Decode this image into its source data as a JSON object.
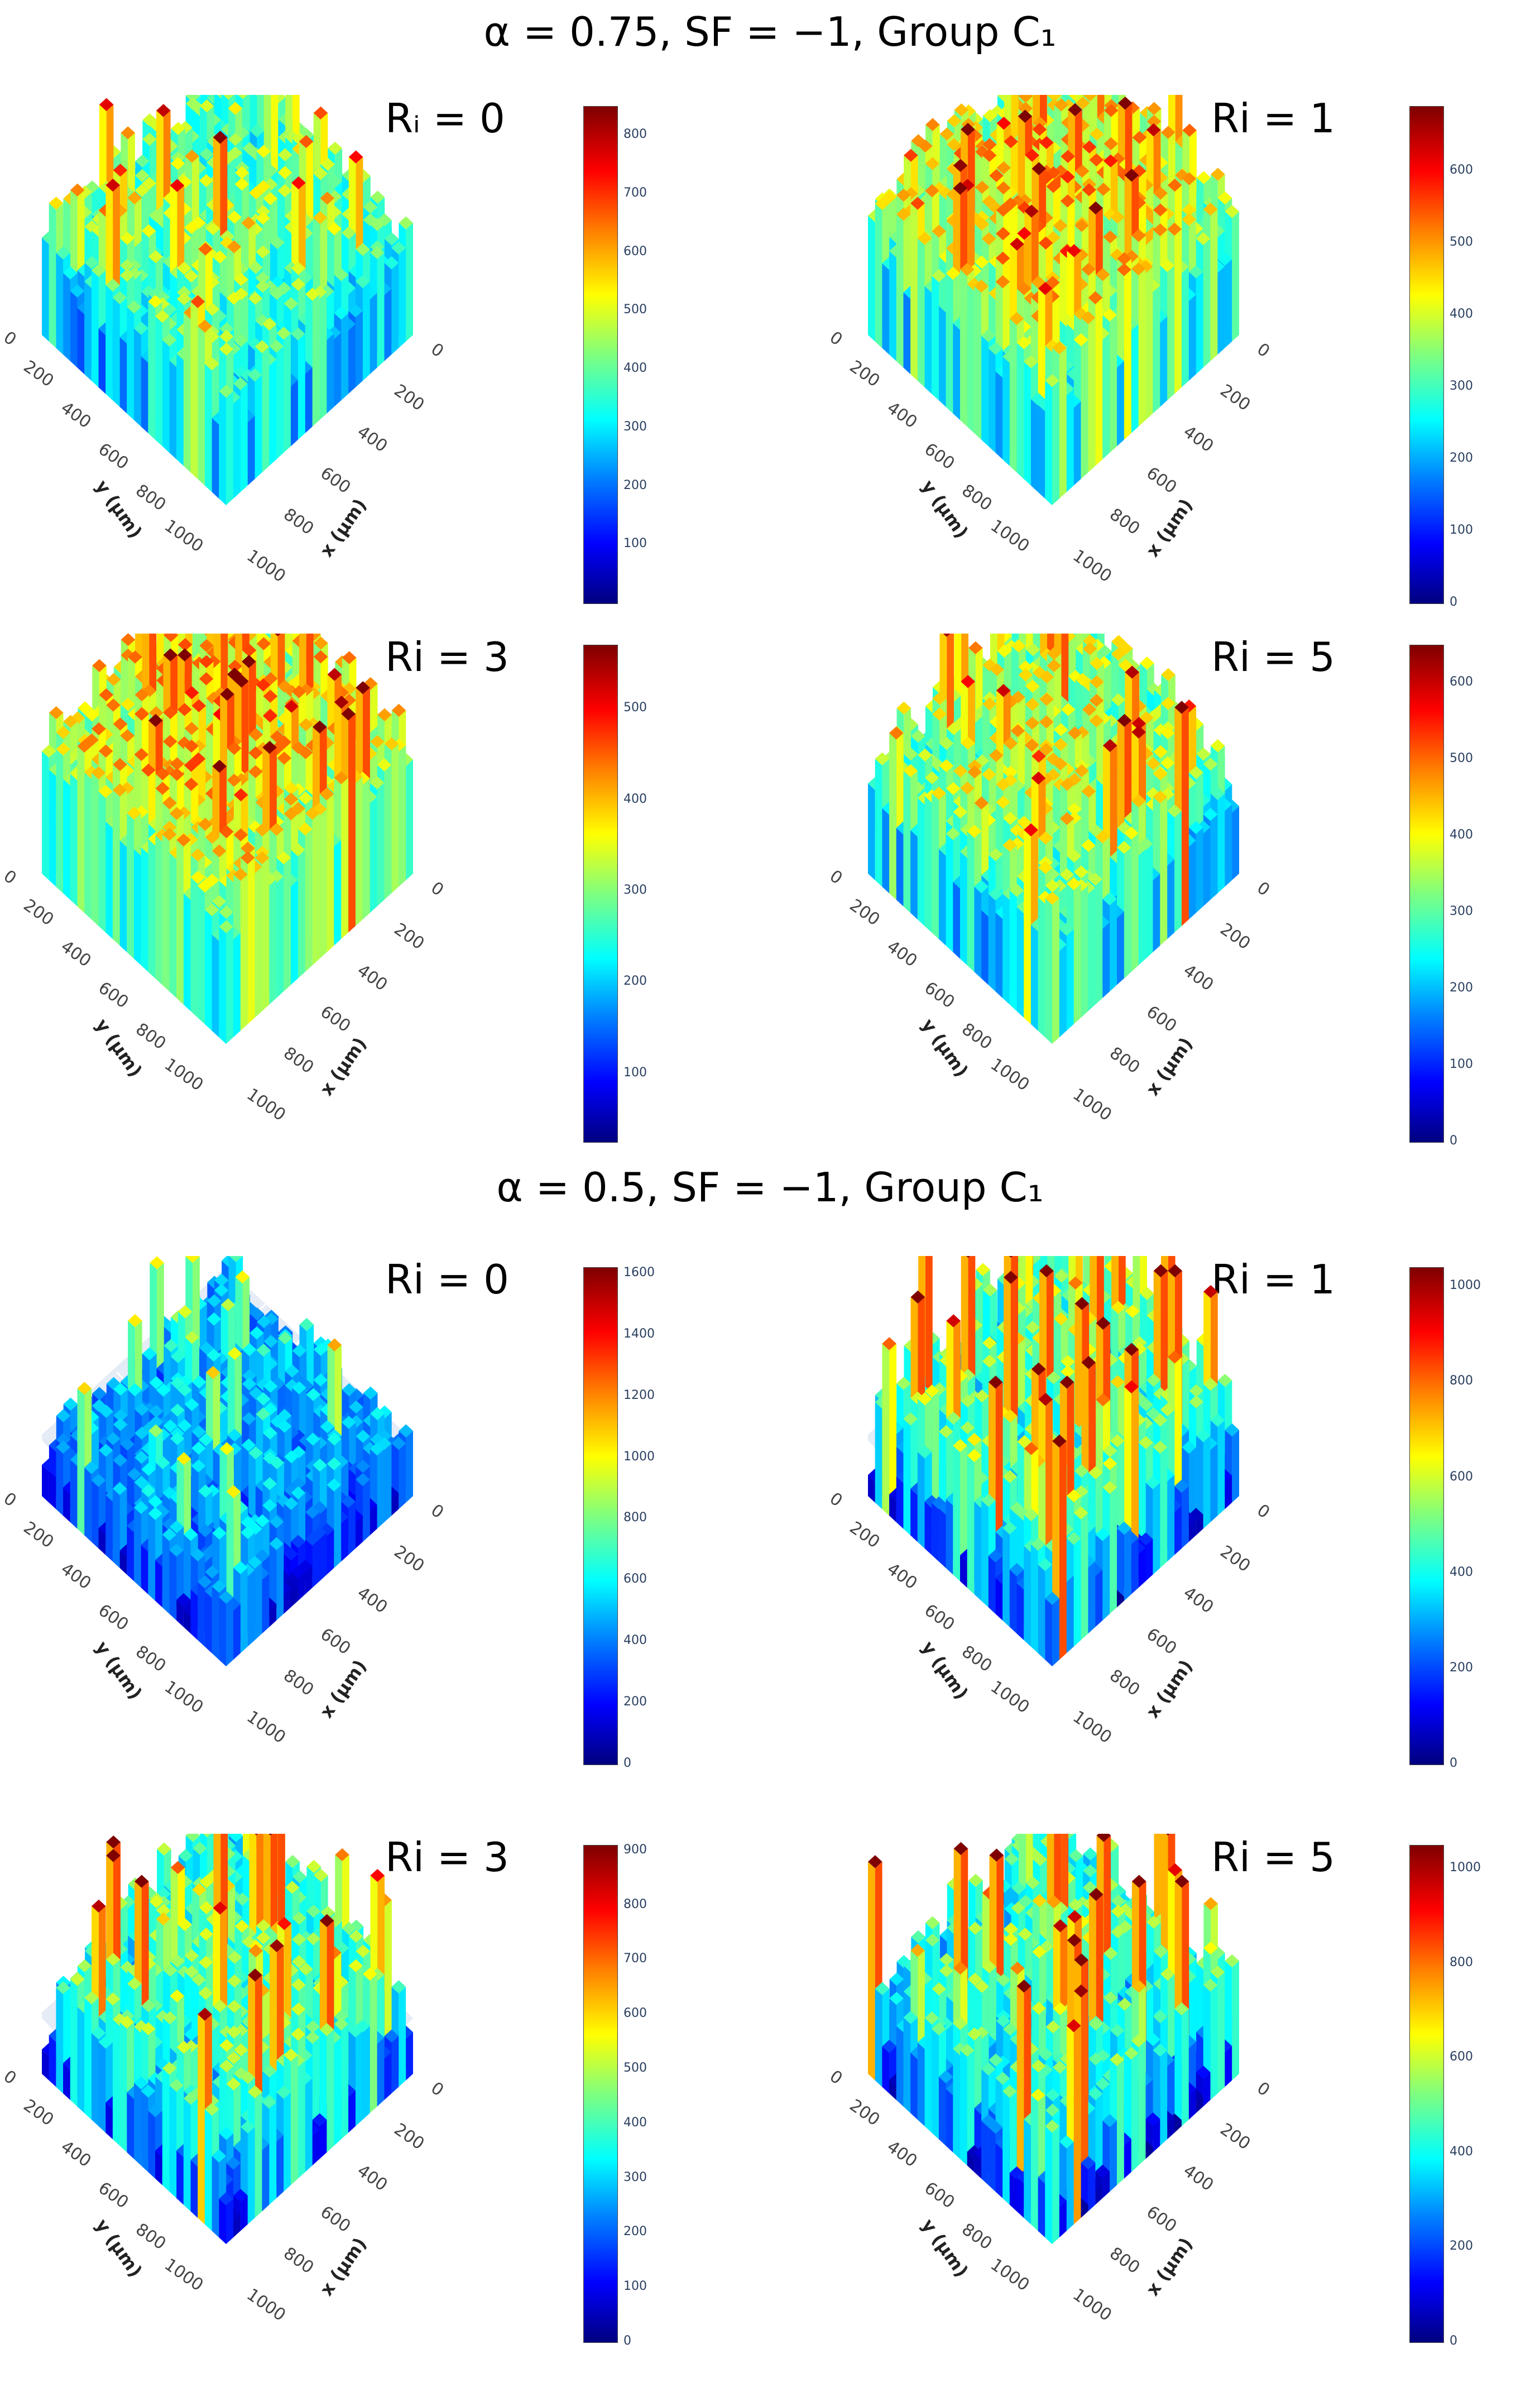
{
  "groups": [
    {
      "title": "α = 0.75, SF = −1,  Group C₁"
    },
    {
      "title": "α = 0.5, SF = −1,  Group C₁"
    }
  ],
  "axis": {
    "x_label": "x (µm)",
    "y_label": "y (µm)",
    "ticks": [
      "0",
      "200",
      "400",
      "600",
      "800",
      "1000"
    ]
  },
  "colormap": [
    "#00007f",
    "#0000ff",
    "#007fff",
    "#00ffff",
    "#7fff7f",
    "#ffff00",
    "#ff7f00",
    "#ff0000",
    "#7f0000"
  ],
  "chart_data": [
    {
      "type": "surface3d",
      "group": 0,
      "title": "Rᵢ = 0",
      "xlabel": "x (µm)",
      "ylabel": "y (µm)",
      "xlim": [
        0,
        1000
      ],
      "ylim": [
        0,
        1000
      ],
      "colorbar": {
        "range": [
          0,
          850
        ],
        "ticks": [
          100,
          200,
          300,
          400,
          500,
          600,
          700,
          800
        ]
      },
      "height_level": 0.42,
      "roughness": 0.35
    },
    {
      "type": "surface3d",
      "group": 0,
      "title": "Ri = 1",
      "xlabel": "x (µm)",
      "ylabel": "y (µm)",
      "xlim": [
        0,
        1000
      ],
      "ylim": [
        0,
        1000
      ],
      "colorbar": {
        "range": [
          0,
          690
        ],
        "ticks": [
          0,
          100,
          200,
          300,
          400,
          500,
          600
        ]
      },
      "height_level": 0.55,
      "roughness": 0.45
    },
    {
      "type": "surface3d",
      "group": 0,
      "title": "Ri = 3",
      "xlabel": "x (µm)",
      "ylabel": "y (µm)",
      "xlim": [
        0,
        1000
      ],
      "ylim": [
        0,
        1000
      ],
      "colorbar": {
        "range": [
          25,
          570
        ],
        "ticks": [
          100,
          200,
          300,
          400,
          500
        ]
      },
      "height_level": 0.6,
      "roughness": 0.35
    },
    {
      "type": "surface3d",
      "group": 0,
      "title": "Ri = 5",
      "xlabel": "x (µm)",
      "ylabel": "y (µm)",
      "xlim": [
        0,
        1000
      ],
      "ylim": [
        0,
        1000
      ],
      "colorbar": {
        "range": [
          0,
          650
        ],
        "ticks": [
          0,
          100,
          200,
          300,
          400,
          500,
          600
        ]
      },
      "height_level": 0.48,
      "roughness": 0.4
    },
    {
      "type": "surface3d",
      "group": 1,
      "title": "Ri = 0",
      "xlabel": "x (µm)",
      "ylabel": "y (µm)",
      "xlim": [
        0,
        1000
      ],
      "ylim": [
        0,
        1000
      ],
      "colorbar": {
        "range": [
          0,
          1620
        ],
        "ticks": [
          0,
          200,
          400,
          600,
          800,
          1000,
          1200,
          1400,
          1600
        ]
      },
      "height_level": 0.22,
      "roughness": 0.35
    },
    {
      "type": "surface3d",
      "group": 1,
      "title": "Ri = 1",
      "xlabel": "x (µm)",
      "ylabel": "y (µm)",
      "xlim": [
        0,
        1000
      ],
      "ylim": [
        0,
        1000
      ],
      "colorbar": {
        "range": [
          0,
          1040
        ],
        "ticks": [
          0,
          200,
          400,
          600,
          800,
          1000
        ]
      },
      "height_level": 0.3,
      "roughness": 0.7
    },
    {
      "type": "surface3d",
      "group": 1,
      "title": "Ri = 3",
      "xlabel": "x (µm)",
      "ylabel": "y (µm)",
      "xlim": [
        0,
        1000
      ],
      "ylim": [
        0,
        1000
      ],
      "colorbar": {
        "range": [
          0,
          910
        ],
        "ticks": [
          0,
          100,
          200,
          300,
          400,
          500,
          600,
          700,
          800,
          900
        ]
      },
      "height_level": 0.32,
      "roughness": 0.55
    },
    {
      "type": "surface3d",
      "group": 1,
      "title": "Ri = 5",
      "xlabel": "x (µm)",
      "ylabel": "y (µm)",
      "xlim": [
        0,
        1000
      ],
      "ylim": [
        0,
        1000
      ],
      "colorbar": {
        "range": [
          0,
          1050
        ],
        "ticks": [
          0,
          200,
          400,
          600,
          800,
          1000
        ]
      },
      "height_level": 0.28,
      "roughness": 0.6
    }
  ]
}
